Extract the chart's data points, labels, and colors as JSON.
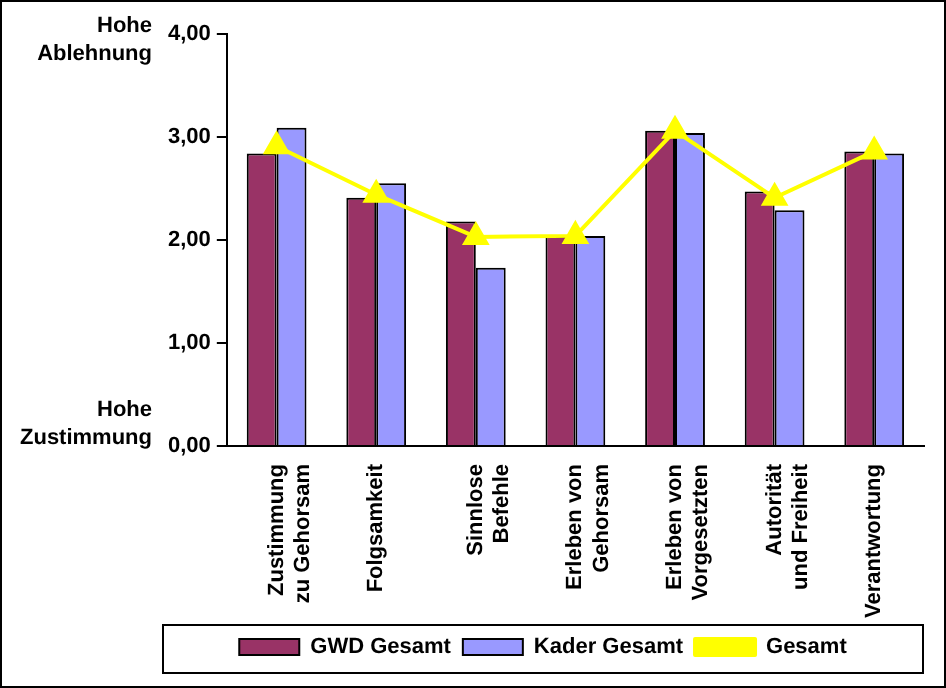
{
  "chart_data": {
    "type": "bar",
    "categories": [
      "Zustimmung zu Gehorsam",
      "Folgsamkeit",
      "Sinnlose Befehle",
      "Erleben von Gehorsam",
      "Erleben von Vorgesetzten",
      "Autorität und Freiheit",
      "Verantwortung"
    ],
    "series": [
      {
        "name": "GWD Gesamt",
        "color": "#993366",
        "values": [
          2.84,
          2.41,
          2.18,
          2.04,
          3.06,
          2.47,
          2.86
        ]
      },
      {
        "name": "Kader Gesamt",
        "color": "#9999ff",
        "values": [
          3.09,
          2.55,
          1.73,
          2.04,
          3.04,
          2.29,
          2.84
        ]
      },
      {
        "name": "Gesamt",
        "type": "line",
        "color": "#ffff00",
        "marker": "triangle",
        "values": [
          2.91,
          2.44,
          2.03,
          2.04,
          3.06,
          2.41,
          2.86
        ]
      }
    ],
    "ylim": [
      0,
      4
    ],
    "yticks": [
      {
        "value": 0,
        "label": "0,00"
      },
      {
        "value": 1,
        "label": "1,00"
      },
      {
        "value": 2,
        "label": "2,00"
      },
      {
        "value": 3,
        "label": "3,00"
      },
      {
        "value": 4,
        "label": "4,00"
      }
    ],
    "grid": false,
    "legend": "bottom",
    "annotations": [
      "Hohe Ablehnung",
      "Hohe Zustimmung"
    ]
  }
}
